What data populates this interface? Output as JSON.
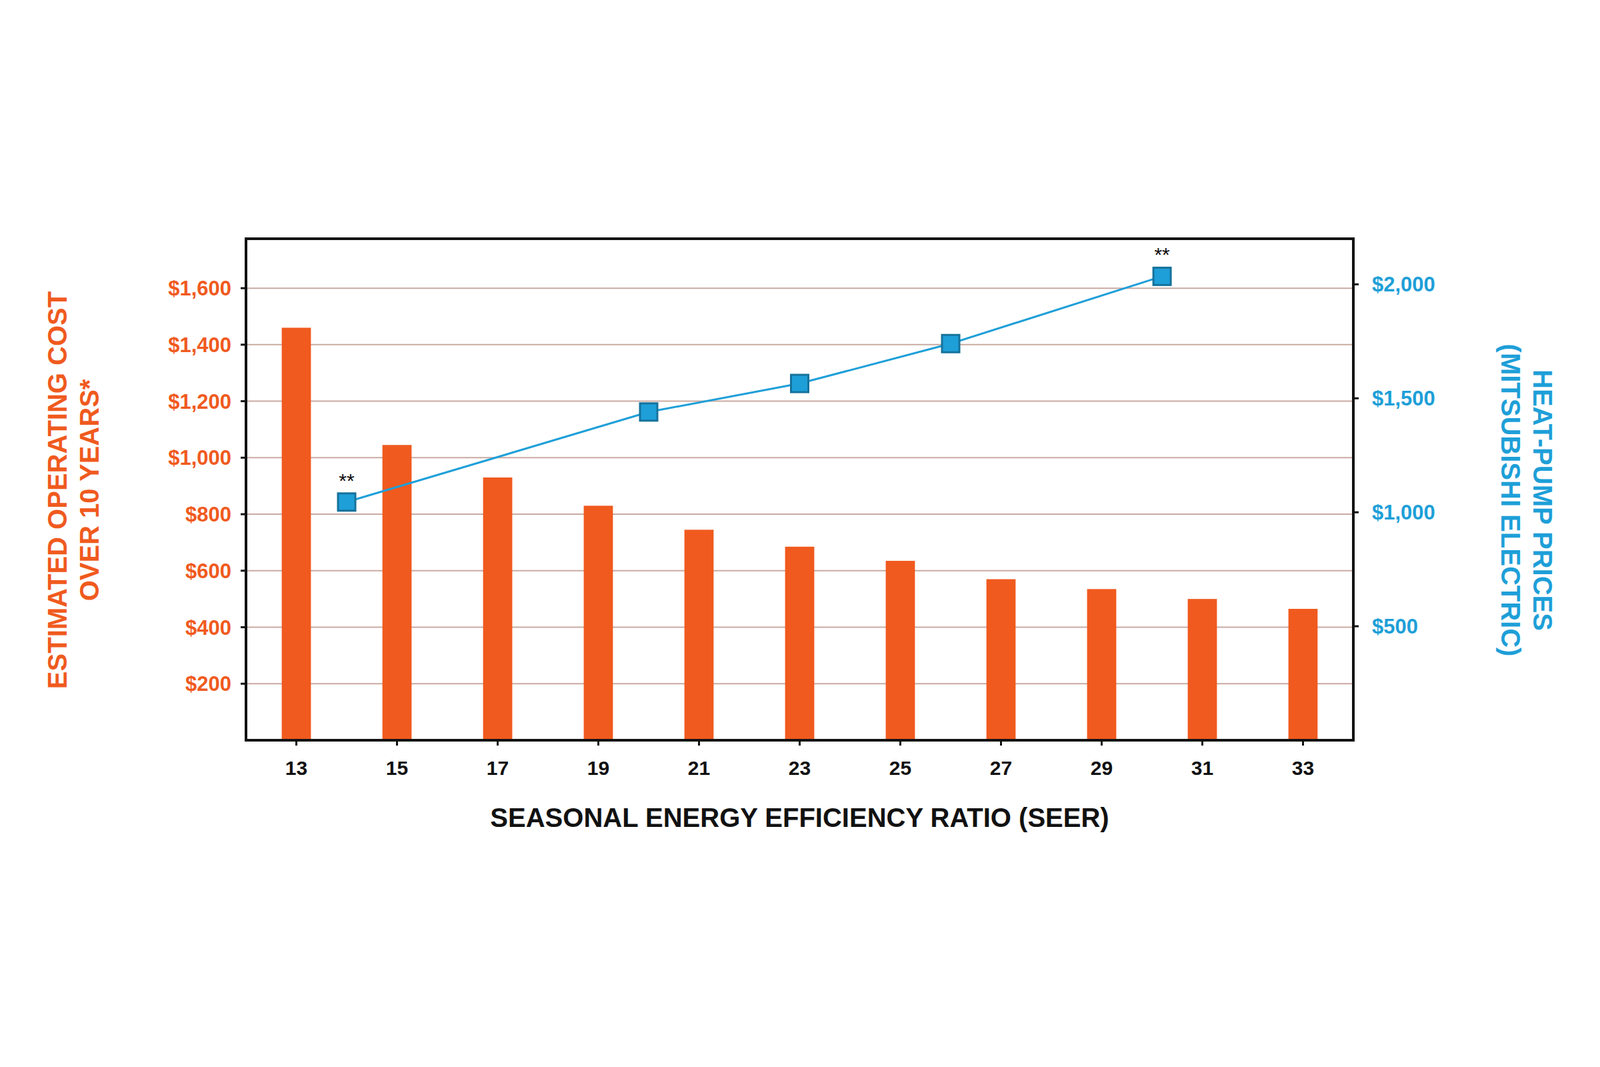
{
  "chart_data": {
    "type": "bar",
    "x_label": "SEASONAL ENERGY EFFICIENCY RATIO (SEER)",
    "y_label": "ESTIMATED OPERATING COST\nOVER 10 YEARS*",
    "y2_label": "HEAT-PUMP PRICES\n(MITSUBISHI ELECTRIC)",
    "xlim": [
      12,
      34
    ],
    "xticks": [
      13,
      15,
      17,
      19,
      21,
      23,
      25,
      27,
      29,
      31,
      33
    ],
    "ylim": [
      0,
      1775
    ],
    "yticks": [
      {
        "value": 200,
        "label": "$200"
      },
      {
        "value": 400,
        "label": "$400"
      },
      {
        "value": 600,
        "label": "$600"
      },
      {
        "value": 800,
        "label": "$800"
      },
      {
        "value": 1000,
        "label": "$1,000"
      },
      {
        "value": 1200,
        "label": "$1,200"
      },
      {
        "value": 1400,
        "label": "$1,400"
      },
      {
        "value": 1600,
        "label": "$1,600"
      }
    ],
    "y2lim": [
      0,
      2200
    ],
    "y2ticks": [
      {
        "value": 500,
        "label": "$500"
      },
      {
        "value": 1000,
        "label": "$1,000"
      },
      {
        "value": 1500,
        "label": "$1,500"
      },
      {
        "value": 2000,
        "label": "$2,000"
      }
    ],
    "grid": true,
    "series": [
      {
        "type": "bar",
        "color": "#f05a1e",
        "x": [
          13,
          15,
          17,
          19,
          21,
          23,
          25,
          27,
          29,
          31,
          33
        ],
        "values": [
          1460,
          1045,
          930,
          830,
          745,
          685,
          635,
          570,
          535,
          500,
          465
        ]
      },
      {
        "type": "line",
        "axis": "y2",
        "color": "#1e9fd8",
        "marker": "square",
        "x": [
          14,
          20,
          23,
          26,
          30.2
        ],
        "values": [
          1045,
          1440,
          1565,
          1740,
          2035
        ],
        "point_labels": [
          "**",
          null,
          null,
          null,
          "**"
        ]
      }
    ]
  }
}
